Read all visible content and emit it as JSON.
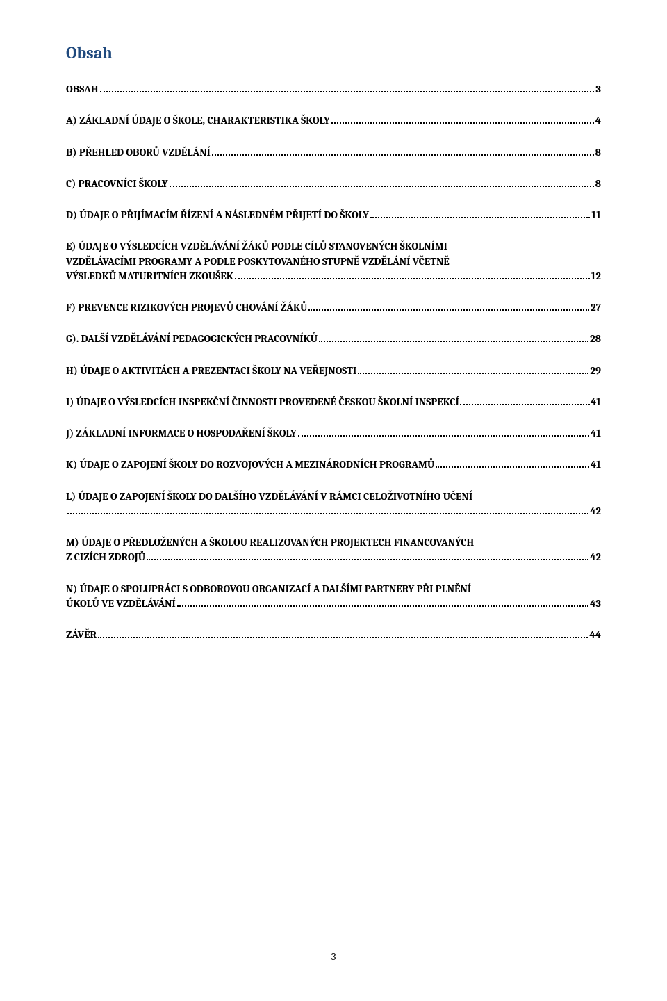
{
  "doc": {
    "title": "Obsah",
    "page_number": "3"
  },
  "colors": {
    "title_color": "#1f497d",
    "text_color": "#000000",
    "background": "#ffffff"
  },
  "typography": {
    "title_fontsize": 24,
    "entry_fontsize": 15,
    "entry_fontweight": "bold",
    "font_family": "Cambria"
  },
  "toc": {
    "entries": [
      {
        "text": "OBSAH",
        "page": "3",
        "lines": [
          "OBSAH"
        ]
      },
      {
        "text": "A) ZÁKLADNÍ ÚDAJE O ŠKOLE, CHARAKTERISTIKA ŠKOLY",
        "page": "4",
        "lines": [
          "A) ZÁKLADNÍ ÚDAJE O ŠKOLE, CHARAKTERISTIKA ŠKOLY"
        ]
      },
      {
        "text": "B) PŘEHLED OBORŮ VZDĚLÁNÍ",
        "page": "8",
        "lines": [
          "B) PŘEHLED OBORŮ VZDĚLÁNÍ"
        ]
      },
      {
        "text": "C) PRACOVNÍCI ŠKOLY",
        "page": "8",
        "lines": [
          "C) PRACOVNÍCI ŠKOLY"
        ]
      },
      {
        "text": "D) ÚDAJE O PŘIJÍMACÍM ŘÍZENÍ A NÁSLEDNÉM PŘIJETÍ DO ŠKOLY",
        "page": "11",
        "lines": [
          "D) ÚDAJE O PŘIJÍMACÍM ŘÍZENÍ A NÁSLEDNÉM PŘIJETÍ DO ŠKOLY"
        ]
      },
      {
        "text": "E) ÚDAJE O VÝSLEDCÍCH VZDĚLÁVÁNÍ ŽÁKŮ PODLE CÍLŮ STANOVENÝCH ŠKOLNÍMI VZDĚLÁVACÍMI PROGRAMY A PODLE POSKYTOVANÉHO STUPNĚ VZDĚLÁNÍ VČETNĚ VÝSLEDKŮ MATURITNÍCH ZKOUŠEK",
        "page": "12",
        "lines": [
          "E) ÚDAJE O VÝSLEDCÍCH VZDĚLÁVÁNÍ ŽÁKŮ PODLE CÍLŮ STANOVENÝCH ŠKOLNÍMI",
          "VZDĚLÁVACÍMI PROGRAMY A PODLE POSKYTOVANÉHO STUPNĚ VZDĚLÁNÍ VČETNĚ",
          "VÝSLEDKŮ MATURITNÍCH ZKOUŠEK"
        ]
      },
      {
        "text": "F) PREVENCE RIZIKOVÝCH PROJEVŮ CHOVÁNÍ ŽÁKŮ",
        "page": "27",
        "lines": [
          "F) PREVENCE RIZIKOVÝCH PROJEVŮ CHOVÁNÍ ŽÁKŮ"
        ]
      },
      {
        "text": "G). DALŠÍ VZDĚLÁVÁNÍ PEDAGOGICKÝCH PRACOVNÍKŮ",
        "page": "28",
        "lines": [
          "G). DALŠÍ VZDĚLÁVÁNÍ PEDAGOGICKÝCH PRACOVNÍKŮ"
        ]
      },
      {
        "text": "H) ÚDAJE O AKTIVITÁCH A PREZENTACI ŠKOLY NA VEŘEJNOSTI",
        "page": "29",
        "lines": [
          "H) ÚDAJE O AKTIVITÁCH A PREZENTACI ŠKOLY NA VEŘEJNOSTI"
        ]
      },
      {
        "text": "I) ÚDAJE O VÝSLEDCÍCH INSPEKČNÍ ČINNOSTI PROVEDENÉ ČESKOU ŠKOLNÍ INSPEKCÍ",
        "page": "41",
        "lines": [
          "I) ÚDAJE O VÝSLEDCÍCH INSPEKČNÍ ČINNOSTI PROVEDENÉ ČESKOU ŠKOLNÍ INSPEKCÍ"
        ],
        "tight": true
      },
      {
        "text": "J) ZÁKLADNÍ INFORMACE O HOSPODAŘENÍ ŠKOLY",
        "page": "41",
        "lines": [
          "J) ZÁKLADNÍ INFORMACE O HOSPODAŘENÍ ŠKOLY"
        ]
      },
      {
        "text": "K) ÚDAJE O ZAPOJENÍ ŠKOLY DO ROZVOJOVÝCH A MEZINÁRODNÍCH PROGRAMŮ",
        "page": "41",
        "lines": [
          "K) ÚDAJE O ZAPOJENÍ ŠKOLY DO ROZVOJOVÝCH A MEZINÁRODNÍCH PROGRAMŮ"
        ]
      },
      {
        "text": "L) ÚDAJE O ZAPOJENÍ ŠKOLY DO DALŠÍHO VZDĚLÁVÁNÍ V RÁMCI CELOŽIVOTNÍHO UČENÍ",
        "page": "42",
        "lines": [
          "L) ÚDAJE O ZAPOJENÍ ŠKOLY DO DALŠÍHO VZDĚLÁVÁNÍ V RÁMCI CELOŽIVOTNÍHO UČENÍ",
          ""
        ]
      },
      {
        "text": "M) ÚDAJE O PŘEDLOŽENÝCH A ŠKOLOU REALIZOVANÝCH PROJEKTECH FINANCOVANÝCH Z CIZÍCH ZDROJŮ",
        "page": "42",
        "lines": [
          "M) ÚDAJE O PŘEDLOŽENÝCH A ŠKOLOU REALIZOVANÝCH PROJEKTECH FINANCOVANÝCH",
          "Z CIZÍCH ZDROJŮ"
        ]
      },
      {
        "text": "N) ÚDAJE O SPOLUPRÁCI S ODBOROVOU ORGANIZACÍ A DALŠÍMI PARTNERY PŘI PLNĚNÍ ÚKOLŮ VE VZDĚLÁVÁNÍ",
        "page": "43",
        "lines": [
          "N) ÚDAJE O SPOLUPRÁCI S ODBOROVOU ORGANIZACÍ A DALŠÍMI PARTNERY PŘI PLNĚNÍ",
          "ÚKOLŮ VE VZDĚLÁVÁNÍ"
        ]
      },
      {
        "text": "ZÁVĚR",
        "page": "44",
        "lines": [
          "ZÁVĚR"
        ]
      }
    ]
  }
}
